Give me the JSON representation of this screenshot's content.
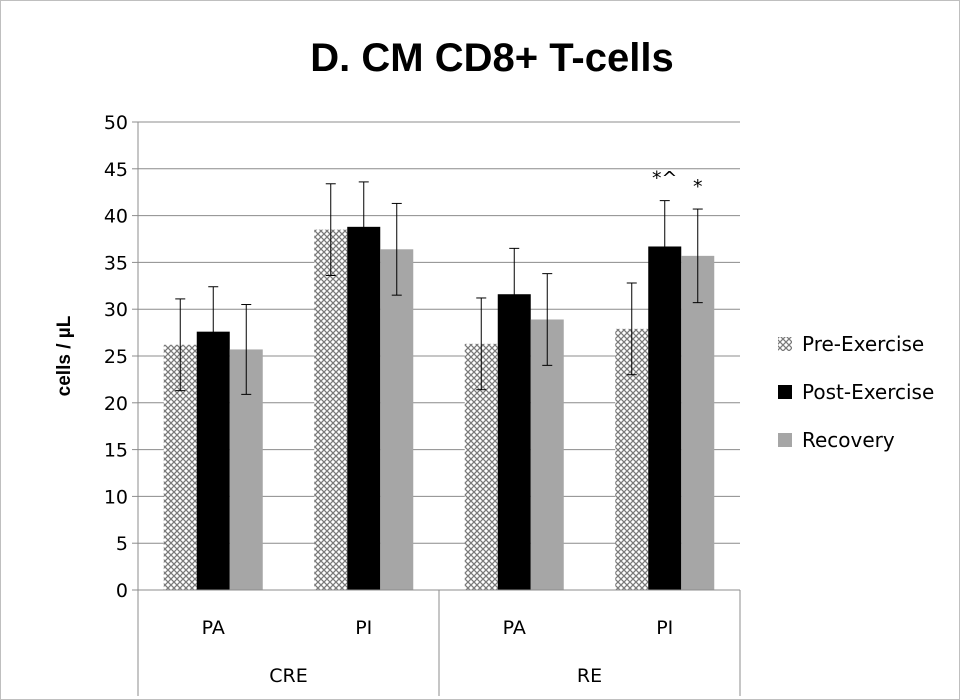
{
  "chart_data": {
    "type": "bar",
    "title": "D. CM CD8+ T-cells",
    "ylabel": "cells / µL",
    "xlabel": "",
    "ylim": [
      0,
      50
    ],
    "yticks": [
      0,
      5,
      10,
      15,
      20,
      25,
      30,
      35,
      40,
      45,
      50
    ],
    "groups": [
      {
        "label": "CRE",
        "categories": [
          "PA",
          "PI"
        ]
      },
      {
        "label": "RE",
        "categories": [
          "PA",
          "PI"
        ]
      }
    ],
    "categories": [
      "PA",
      "PI",
      "PA",
      "PI"
    ],
    "series": [
      {
        "name": "Pre-Exercise",
        "color": "#d0d0d0",
        "pattern": "crosshatch",
        "values": [
          26.2,
          38.5,
          26.3,
          27.9
        ],
        "errors": [
          4.9,
          4.9,
          4.9,
          4.9
        ]
      },
      {
        "name": "Post-Exercise",
        "color": "#000000",
        "values": [
          27.6,
          38.8,
          31.6,
          36.7
        ],
        "errors": [
          4.8,
          4.8,
          4.9,
          4.9
        ]
      },
      {
        "name": "Recovery",
        "color": "#a6a6a6",
        "values": [
          25.7,
          36.4,
          28.9,
          35.7
        ],
        "errors": [
          4.8,
          4.9,
          4.9,
          5.0
        ]
      }
    ],
    "annotations": [
      {
        "category_index": 3,
        "series_index": 1,
        "text": "*^"
      },
      {
        "category_index": 3,
        "series_index": 2,
        "text": "*"
      }
    ],
    "grid": true,
    "legend": "right"
  }
}
